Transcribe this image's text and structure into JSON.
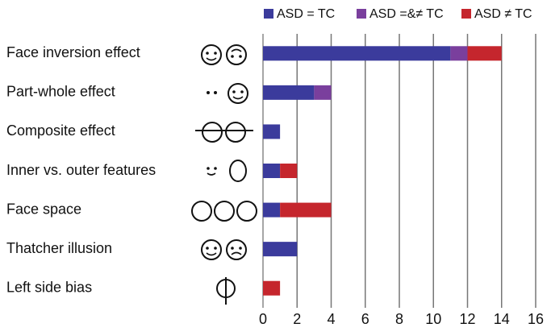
{
  "chart_data": {
    "type": "stacked-barh",
    "categories": [
      "Face inversion effect",
      "Part-whole effect",
      "Composite effect",
      "Inner vs. outer features",
      "Face space",
      "Thatcher illusion",
      "Left side bias"
    ],
    "series": [
      {
        "name": "ASD = TC",
        "color": "#3b3b9c",
        "values": [
          11,
          3,
          1,
          1,
          1,
          2,
          0
        ]
      },
      {
        "name": "ASD =&≠ TC",
        "color": "#7a3f9d",
        "values": [
          1,
          1,
          0,
          0,
          0,
          0,
          0
        ]
      },
      {
        "name": "ASD ≠ TC",
        "color": "#c5262d",
        "values": [
          2,
          0,
          0,
          1,
          3,
          0,
          1
        ]
      }
    ],
    "xlim": [
      0,
      16
    ],
    "xticks": [
      0,
      2,
      4,
      6,
      8,
      10,
      12,
      14,
      16
    ],
    "grid": true,
    "legend": "top-right"
  }
}
